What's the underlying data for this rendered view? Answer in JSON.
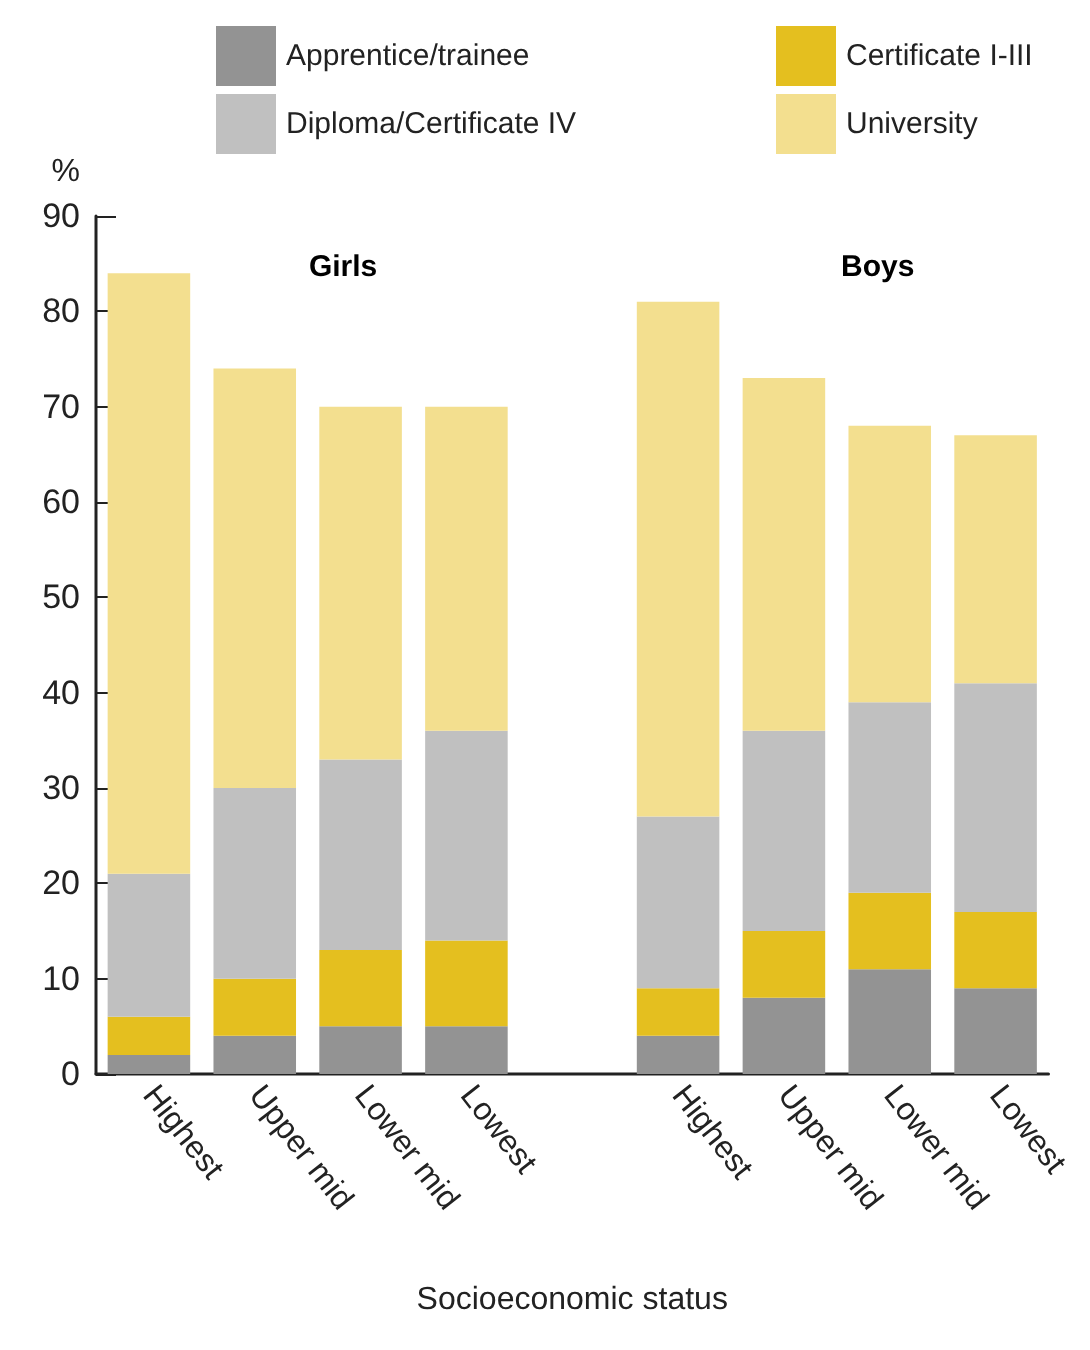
{
  "chart_data": {
    "type": "bar",
    "stacked": true,
    "categories": [
      "Highest",
      "Upper mid",
      "Lower mid",
      "Lowest",
      null,
      "Highest",
      "Upper mid",
      "Lower mid",
      "Lowest"
    ],
    "series": [
      {
        "name": "Apprentice/trainee",
        "color": "#939393",
        "values": [
          2,
          4,
          5,
          5,
          null,
          4,
          8,
          11,
          9
        ]
      },
      {
        "name": "Certificate I-III",
        "color": "#e4bf1f",
        "values": [
          4,
          6,
          8,
          9,
          null,
          5,
          7,
          8,
          8
        ]
      },
      {
        "name": "Diploma/Certificate IV",
        "color": "#c0c0c0",
        "values": [
          15,
          20,
          20,
          22,
          null,
          18,
          21,
          20,
          24
        ]
      },
      {
        "name": "University",
        "color": "#f3df8f",
        "values": [
          63,
          44,
          37,
          34,
          null,
          54,
          37,
          29,
          26
        ]
      }
    ],
    "xlabel": "Socioeconomic status",
    "ylabel": "%",
    "annotations": [
      "Girls",
      "Boys"
    ],
    "ylim": [
      0,
      90
    ],
    "yticks": [
      0,
      10,
      20,
      30,
      40,
      50,
      60,
      70,
      80,
      90
    ],
    "grid": false,
    "legend": "top"
  }
}
